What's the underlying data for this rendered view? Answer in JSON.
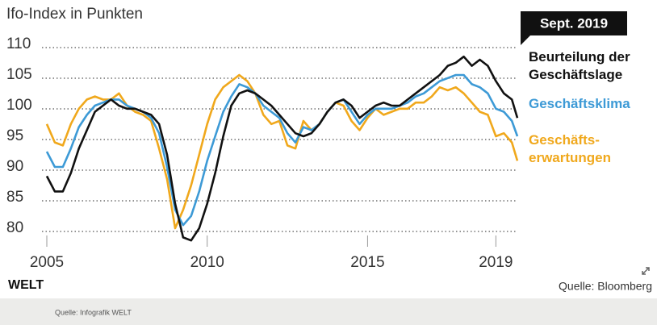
{
  "chart_data": {
    "type": "line",
    "title": "Ifo-Index in Punkten",
    "annotation": "Sept. 2019",
    "brand": "WELT",
    "source": "Quelle: Bloomberg",
    "footer": "Quelle: Infografik WELT",
    "x": [
      2005,
      2005.25,
      2005.5,
      2005.75,
      2006,
      2006.25,
      2006.5,
      2006.75,
      2007,
      2007.25,
      2007.5,
      2007.75,
      2008,
      2008.25,
      2008.5,
      2008.75,
      2009,
      2009.25,
      2009.5,
      2009.75,
      2010,
      2010.25,
      2010.5,
      2010.75,
      2011,
      2011.25,
      2011.5,
      2011.75,
      2012,
      2012.25,
      2012.5,
      2012.75,
      2013,
      2013.25,
      2013.5,
      2013.75,
      2014,
      2014.25,
      2014.5,
      2014.75,
      2015,
      2015.25,
      2015.5,
      2015.75,
      2016,
      2016.25,
      2016.5,
      2016.75,
      2017,
      2017.25,
      2017.5,
      2017.75,
      2018,
      2018.25,
      2018.5,
      2018.75,
      2019,
      2019.25,
      2019.5,
      2019.67
    ],
    "series": [
      {
        "name": "Beurteilung der Geschäftslage",
        "color": "#111111",
        "values": [
          88.5,
          86,
          86,
          89,
          93,
          96,
          99,
          100,
          101,
          100,
          99.5,
          99.5,
          99,
          98.5,
          97,
          92,
          84,
          78.5,
          78,
          80,
          84,
          89,
          95,
          100,
          102,
          102.5,
          102,
          101,
          100,
          98.5,
          97,
          95.5,
          95,
          95.5,
          97,
          99,
          100.5,
          101,
          100,
          98,
          99,
          100,
          100.5,
          100,
          100,
          101,
          102,
          103,
          104,
          105,
          106.5,
          107,
          108,
          106.5,
          107.5,
          106.5,
          104,
          102,
          101,
          98
        ]
      },
      {
        "name": "Geschäftsklima",
        "color": "#3d9ad6",
        "values": [
          92.5,
          90,
          90,
          93,
          96.5,
          98.5,
          100,
          100.5,
          101,
          101,
          100,
          99.5,
          99,
          98,
          95.5,
          90,
          83,
          80.5,
          82,
          86,
          91,
          95,
          99,
          101.5,
          103.5,
          103,
          102,
          100,
          99,
          98,
          95.5,
          94,
          96.5,
          96,
          97,
          99,
          100.5,
          101,
          99,
          97,
          98.5,
          99.5,
          99.5,
          99.5,
          100,
          100.5,
          101.5,
          102,
          103,
          104,
          104.5,
          105,
          105,
          103.5,
          103,
          102,
          99.5,
          99,
          97.5,
          95
        ]
      },
      {
        "name": "Geschäfts­erwartungen",
        "color": "#f0a81c",
        "values": [
          97,
          94,
          93.5,
          97,
          99.5,
          101,
          101.5,
          101,
          101,
          102,
          100,
          99,
          98.5,
          97.5,
          93,
          88,
          80,
          83,
          87,
          92,
          97,
          101,
          103,
          104,
          105,
          104,
          102,
          98.5,
          97,
          97.5,
          93.5,
          93,
          97.5,
          96,
          97,
          99,
          100.5,
          100,
          97.5,
          96,
          98,
          99.5,
          98.5,
          99,
          99.5,
          99.5,
          100.5,
          100.5,
          101.5,
          103,
          102.5,
          103,
          102,
          100.5,
          99,
          98.5,
          95,
          95.5,
          94,
          91
        ]
      }
    ],
    "xlim": [
      2005,
      2019.67
    ],
    "xticks": [
      2005,
      2010,
      2015,
      2019
    ],
    "ylim": [
      80,
      110
    ],
    "yticks": [
      80,
      85,
      90,
      95,
      100,
      105,
      110
    ],
    "grid": true
  }
}
